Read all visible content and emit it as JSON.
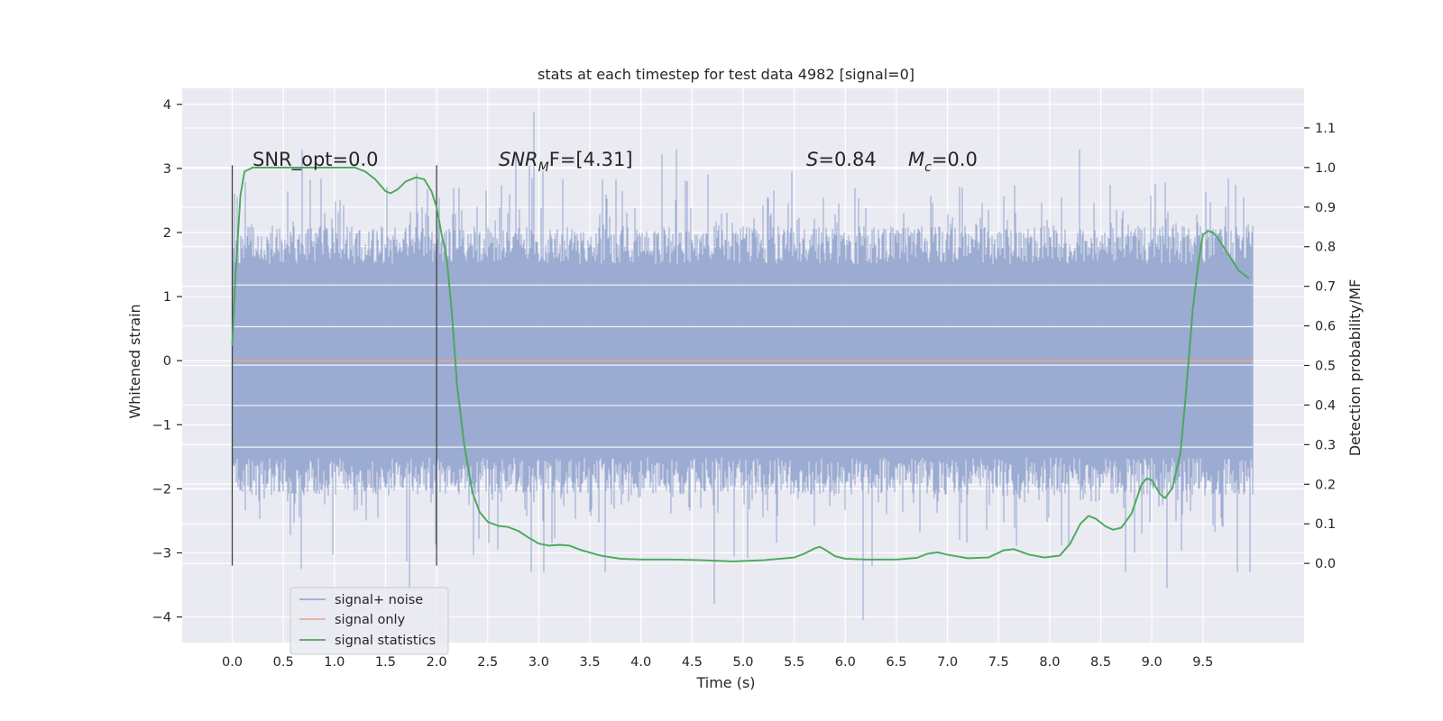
{
  "chart_data": {
    "type": "line",
    "title": "stats at each timestep for test data 4982 [signal=0]",
    "xlabel": "Time (s)",
    "ylabel_left": "Whitened strain",
    "ylabel_right": "Detection probability/MF",
    "xlim": [
      -0.49,
      10.49
    ],
    "ylim_left": [
      -4.4,
      4.25
    ],
    "ylim_right": [
      -0.2,
      1.2
    ],
    "x_ticks": [
      0.0,
      0.5,
      1.0,
      1.5,
      2.0,
      2.5,
      3.0,
      3.5,
      4.0,
      4.5,
      5.0,
      5.5,
      6.0,
      6.5,
      7.0,
      7.5,
      8.0,
      8.5,
      9.0,
      9.5
    ],
    "x_tick_labels": [
      "0.0",
      "0.5",
      "1.0",
      "1.5",
      "2.0",
      "2.5",
      "3.0",
      "3.5",
      "4.0",
      "4.5",
      "5.0",
      "5.5",
      "6.0",
      "6.5",
      "7.0",
      "7.5",
      "8.0",
      "8.5",
      "9.0",
      "9.5"
    ],
    "y_left_ticks": [
      -4,
      -3,
      -2,
      -1,
      0,
      1,
      2,
      3,
      4
    ],
    "y_left_tick_labels": [
      "−4",
      "−3",
      "−2",
      "−1",
      "0",
      "1",
      "2",
      "3",
      "4"
    ],
    "y_right_ticks": [
      0.0,
      0.1,
      0.2,
      0.3,
      0.4,
      0.5,
      0.6,
      0.7,
      0.8,
      0.9,
      1.0,
      1.1
    ],
    "y_right_tick_labels": [
      "0.0",
      "0.1",
      "0.2",
      "0.3",
      "0.4",
      "0.5",
      "0.6",
      "0.7",
      "0.8",
      "0.9",
      "1.0",
      "1.1"
    ],
    "grid": true,
    "legend_position": "lower-left",
    "annotations": {
      "snr_opt": "SNR_opt=0.0",
      "snr_mf_label": "SNR",
      "snr_mf_sub": "M",
      "snr_mf_rest": "F=[4.31]",
      "s_label": "S",
      "s_rest": "=0.84",
      "mc_label": "M",
      "mc_sub": "c",
      "mc_rest": "=0.0"
    },
    "vlines": [
      0.0,
      2.0
    ],
    "vline_range": [
      -3.2,
      3.05
    ],
    "series": [
      {
        "name": "signal+ noise",
        "color": "#8da0cb",
        "x_range": [
          0.0,
          9.99
        ],
        "band_typical": [
          -2.1,
          2.1
        ],
        "sample_points": [
          {
            "x": 1.73,
            "y": -3.6
          },
          {
            "x": 2.95,
            "y": 3.88
          },
          {
            "x": 4.72,
            "y": -3.8
          },
          {
            "x": 6.17,
            "y": -4.05
          },
          {
            "x": 9.15,
            "y": -3.55
          },
          {
            "x": 9.9,
            "y": 2.55
          }
        ]
      },
      {
        "name": "signal only",
        "color": "#e5a58a",
        "x": [
          0.0,
          9.99
        ],
        "y": [
          0.0,
          0.0
        ]
      },
      {
        "name": "signal statistics",
        "color": "#4aa85a",
        "axis": "right",
        "x": [
          0.0,
          0.03,
          0.08,
          0.12,
          0.2,
          0.3,
          0.45,
          0.6,
          0.8,
          1.0,
          1.2,
          1.3,
          1.4,
          1.5,
          1.55,
          1.62,
          1.7,
          1.8,
          1.88,
          1.95,
          2.0,
          2.05,
          2.1,
          2.15,
          2.2,
          2.27,
          2.35,
          2.42,
          2.5,
          2.6,
          2.7,
          2.8,
          2.9,
          3.0,
          3.1,
          3.2,
          3.3,
          3.4,
          3.6,
          3.8,
          4.0,
          4.3,
          4.6,
          4.9,
          5.2,
          5.5,
          5.6,
          5.7,
          5.75,
          5.8,
          5.9,
          6.0,
          6.2,
          6.5,
          6.7,
          6.8,
          6.9,
          7.0,
          7.2,
          7.4,
          7.55,
          7.65,
          7.8,
          7.95,
          8.1,
          8.2,
          8.3,
          8.38,
          8.45,
          8.55,
          8.62,
          8.7,
          8.8,
          8.9,
          8.95,
          9.0,
          9.08,
          9.13,
          9.2,
          9.28,
          9.33,
          9.4,
          9.45,
          9.5,
          9.55,
          9.6,
          9.65,
          9.75,
          9.85,
          9.95
        ],
        "y": [
          0.55,
          0.72,
          0.93,
          0.99,
          1.0,
          1.0,
          1.0,
          1.0,
          1.0,
          1.0,
          1.0,
          0.99,
          0.97,
          0.94,
          0.935,
          0.945,
          0.965,
          0.975,
          0.97,
          0.94,
          0.9,
          0.83,
          0.77,
          0.63,
          0.45,
          0.3,
          0.18,
          0.13,
          0.105,
          0.095,
          0.092,
          0.082,
          0.065,
          0.05,
          0.045,
          0.047,
          0.045,
          0.035,
          0.02,
          0.012,
          0.01,
          0.01,
          0.008,
          0.005,
          0.008,
          0.015,
          0.025,
          0.038,
          0.042,
          0.035,
          0.018,
          0.012,
          0.01,
          0.01,
          0.014,
          0.024,
          0.028,
          0.022,
          0.013,
          0.015,
          0.033,
          0.036,
          0.022,
          0.015,
          0.02,
          0.05,
          0.1,
          0.12,
          0.113,
          0.093,
          0.085,
          0.09,
          0.125,
          0.2,
          0.215,
          0.21,
          0.175,
          0.165,
          0.19,
          0.28,
          0.42,
          0.64,
          0.75,
          0.83,
          0.84,
          0.835,
          0.82,
          0.78,
          0.74,
          0.72
        ]
      }
    ]
  }
}
